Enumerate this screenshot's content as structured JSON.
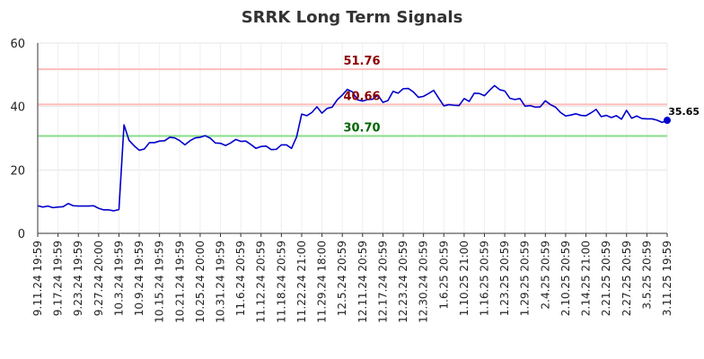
{
  "chart_data": {
    "type": "line",
    "title": "SRRK Long Term Signals",
    "xlabel": "",
    "ylabel": "",
    "ylim": [
      0,
      60
    ],
    "y_ticks": [
      0,
      20,
      40,
      60
    ],
    "grid": true,
    "x_tick_labels": [
      "9.11.24 19:59",
      "9.17.24 19:59",
      "9.23.24 19:59",
      "9.27.24 20:00",
      "10.3.24 19:59",
      "10.9.24 19:59",
      "10.15.24 19:59",
      "10.21.24 19:59",
      "10.25.24 20:00",
      "10.31.24 19:59",
      "11.6.24 20:59",
      "11.12.24 20:59",
      "11.18.24 20:59",
      "11.22.24 21:00",
      "11.29.24 18:00",
      "12.5.24 20:59",
      "12.11.24 20:59",
      "12.17.24 20:59",
      "12.23.24 20:59",
      "12.30.24 20:59",
      "1.6.25 20:59",
      "1.10.25 21:00",
      "1.16.25 20:59",
      "1.23.25 20:59",
      "1.29.25 20:59",
      "2.4.25 20:59",
      "2.10.25 20:59",
      "2.14.25 21:00",
      "2.21.25 20:59",
      "2.27.25 20:59",
      "3.5.25 20:59",
      "3.11.25 19:59"
    ],
    "series": [
      {
        "color": "#0000cc",
        "values": [
          8.7,
          8.3,
          8.6,
          8.1,
          8.3,
          8.4,
          9.4,
          8.7,
          8.6,
          8.6,
          8.6,
          8.7,
          7.9,
          7.4,
          7.4,
          7.1,
          7.5,
          34.2,
          29.3,
          27.6,
          26.2,
          26.6,
          28.6,
          28.6,
          29.1,
          29.2,
          30.3,
          30.1,
          29.2,
          27.9,
          29.2,
          30.1,
          30.3,
          30.8,
          30.0,
          28.5,
          28.4,
          27.7,
          28.5,
          29.6,
          29.0,
          29.1,
          28.0,
          26.8,
          27.4,
          27.5,
          26.4,
          26.5,
          27.9,
          27.9,
          26.8,
          30.4,
          37.6,
          37.1,
          38.1,
          39.9,
          37.9,
          39.4,
          39.8,
          42.1,
          43.6,
          45.4,
          44.6,
          42.1,
          41.7,
          42.2,
          42.3,
          43.6,
          41.3,
          41.9,
          44.8,
          44.2,
          45.6,
          45.7,
          44.6,
          42.9,
          43.2,
          44.1,
          45.1,
          42.6,
          40.2,
          40.6,
          40.4,
          40.3,
          42.5,
          41.6,
          44.2,
          44.1,
          43.4,
          45.1,
          46.6,
          45.3,
          44.9,
          42.6,
          42.2,
          42.5,
          40.1,
          40.3,
          39.8,
          39.9,
          41.8,
          40.6,
          39.8,
          38.1,
          37.0,
          37.3,
          37.7,
          37.2,
          37.1,
          38.0,
          39.1,
          36.8,
          37.2,
          36.5,
          37.1,
          36.0,
          38.8,
          36.3,
          37.0,
          36.2,
          36.1,
          36.1,
          35.7,
          35.0,
          35.65
        ]
      }
    ],
    "reference_lines": [
      {
        "value": 51.76,
        "label": "51.76",
        "color": "#ffbbbb",
        "label_color": "#8b0000"
      },
      {
        "value": 40.66,
        "label": "40.66",
        "color": "#ffbbbb",
        "label_color": "#8b0000"
      },
      {
        "value": 30.7,
        "label": "30.70",
        "color": "#88dd88",
        "label_color": "#006400"
      }
    ],
    "last_value_label": "35.65"
  }
}
